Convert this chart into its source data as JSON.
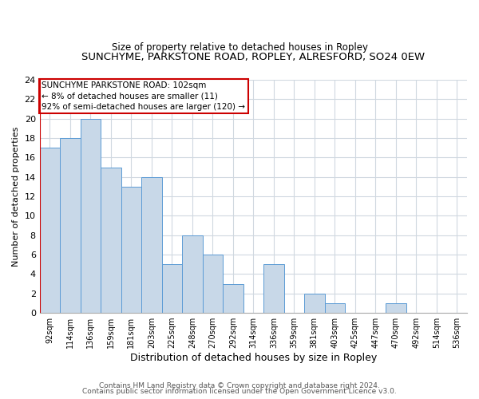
{
  "title1": "SUNCHYME, PARKSTONE ROAD, ROPLEY, ALRESFORD, SO24 0EW",
  "title2": "Size of property relative to detached houses in Ropley",
  "xlabel": "Distribution of detached houses by size in Ropley",
  "ylabel": "Number of detached properties",
  "bin_labels": [
    "92sqm",
    "114sqm",
    "136sqm",
    "159sqm",
    "181sqm",
    "203sqm",
    "225sqm",
    "248sqm",
    "270sqm",
    "292sqm",
    "314sqm",
    "336sqm",
    "359sqm",
    "381sqm",
    "403sqm",
    "425sqm",
    "447sqm",
    "470sqm",
    "492sqm",
    "514sqm",
    "536sqm"
  ],
  "bar_values": [
    17,
    18,
    20,
    15,
    13,
    14,
    5,
    8,
    6,
    3,
    0,
    5,
    0,
    2,
    1,
    0,
    0,
    1,
    0,
    0,
    0
  ],
  "bar_color": "#c8d8e8",
  "bar_edge_color": "#5b9bd5",
  "annotation_box_text": "SUNCHYME PARKSTONE ROAD: 102sqm\n← 8% of detached houses are smaller (11)\n92% of semi-detached houses are larger (120) →",
  "annotation_box_color": "#ffffff",
  "annotation_box_edge_color": "#cc0000",
  "red_line_color": "#cc0000",
  "ylim": [
    0,
    24
  ],
  "yticks": [
    0,
    2,
    4,
    6,
    8,
    10,
    12,
    14,
    16,
    18,
    20,
    22,
    24
  ],
  "footer1": "Contains HM Land Registry data © Crown copyright and database right 2024.",
  "footer2": "Contains public sector information licensed under the Open Government Licence v3.0.",
  "bg_color": "#ffffff",
  "grid_color": "#d0d8e0"
}
